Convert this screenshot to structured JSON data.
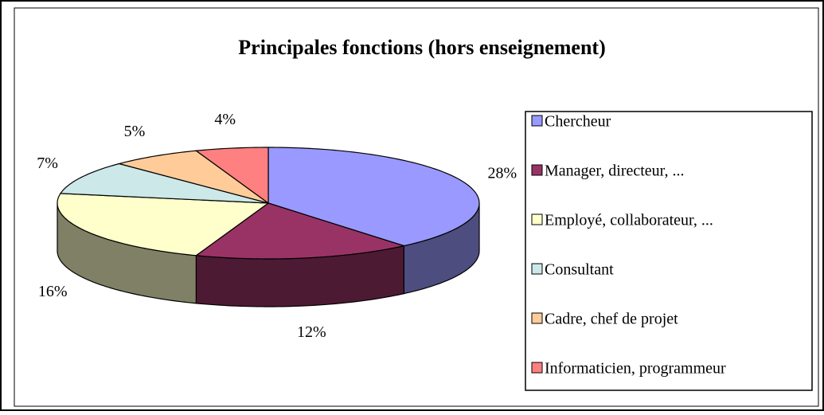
{
  "chart_data": {
    "type": "pie",
    "title": "Principales fonctions (hors enseignement)",
    "categories": [
      "Chercheur",
      "Manager, directeur, ...",
      "Employé, collaborateur, ...",
      "Consultant",
      "Cadre, chef de projet",
      "Informaticien, programmeur"
    ],
    "values": [
      28,
      12,
      16,
      7,
      5,
      4
    ],
    "value_labels": [
      "28%",
      "12%",
      "16%",
      "7%",
      "5%",
      "4%"
    ],
    "colors": [
      "#9999ff",
      "#993366",
      "#ffffcc",
      "#cce8e8",
      "#ffcc99",
      "#ff8080"
    ],
    "legend": "right"
  }
}
